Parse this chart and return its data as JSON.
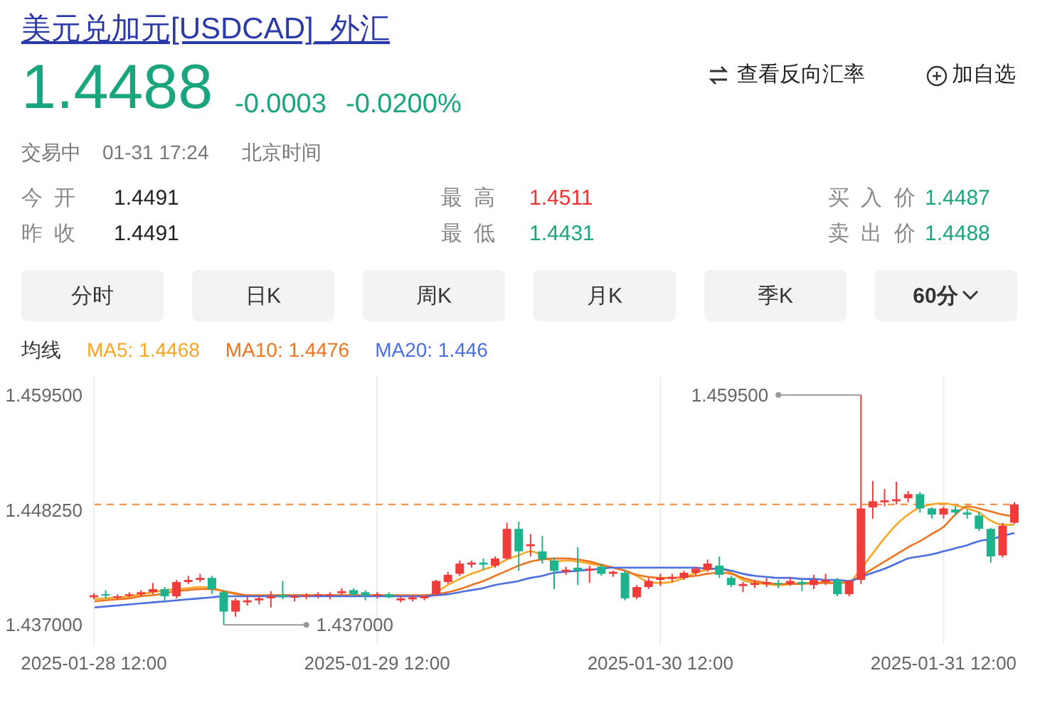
{
  "chart_data": {
    "type": "candlestick",
    "title": "美元兑加元[USDCAD]_外汇",
    "categories": [
      "2025-01-28 12:00",
      null,
      null,
      null,
      null,
      null,
      null,
      null,
      null,
      null,
      null,
      null,
      null,
      null,
      null,
      null,
      null,
      null,
      null,
      null,
      null,
      null,
      null,
      null,
      "2025-01-29 12:00",
      null,
      null,
      null,
      null,
      null,
      null,
      null,
      null,
      null,
      null,
      null,
      null,
      null,
      null,
      null,
      null,
      null,
      null,
      null,
      null,
      null,
      null,
      null,
      "2025-01-30 12:00",
      null,
      null,
      null,
      null,
      null,
      null,
      null,
      null,
      null,
      null,
      null,
      null,
      null,
      null,
      null,
      null,
      null,
      null,
      null,
      null,
      null,
      null,
      null,
      "2025-01-31 12:00",
      null,
      null,
      null,
      null,
      null,
      null
    ],
    "ohlc": [
      [
        1.4397,
        1.4401,
        1.4395,
        1.4399
      ],
      [
        1.44,
        1.4404,
        1.4396,
        1.4399
      ],
      [
        1.4397,
        1.44,
        1.4395,
        1.4398
      ],
      [
        1.4399,
        1.4402,
        1.4397,
        1.44
      ],
      [
        1.44,
        1.4404,
        1.4398,
        1.4402
      ],
      [
        1.4402,
        1.4411,
        1.44,
        1.4405
      ],
      [
        1.4405,
        1.4407,
        1.4393,
        1.4398
      ],
      [
        1.4398,
        1.4414,
        1.4396,
        1.4412
      ],
      [
        1.4412,
        1.4418,
        1.441,
        1.4414
      ],
      [
        1.4414,
        1.442,
        1.4412,
        1.4416
      ],
      [
        1.4416,
        1.4418,
        1.44,
        1.4405
      ],
      [
        1.4402,
        1.4404,
        1.437,
        1.4383
      ],
      [
        1.4383,
        1.4396,
        1.4378,
        1.4394
      ],
      [
        1.4392,
        1.4398,
        1.4389,
        1.4394
      ],
      [
        1.4394,
        1.4399,
        1.439,
        1.4396
      ],
      [
        1.4396,
        1.4403,
        1.4387,
        1.4398
      ],
      [
        1.4399,
        1.4413,
        1.4395,
        1.4397
      ],
      [
        1.4397,
        1.44,
        1.4393,
        1.4398
      ],
      [
        1.4398,
        1.4401,
        1.4395,
        1.4399
      ],
      [
        1.4399,
        1.4402,
        1.4396,
        1.44
      ],
      [
        1.4399,
        1.4402,
        1.4395,
        1.44
      ],
      [
        1.4401,
        1.4406,
        1.4399,
        1.4403
      ],
      [
        1.4404,
        1.4406,
        1.4398,
        1.44
      ],
      [
        1.4402,
        1.4404,
        1.4394,
        1.4399
      ],
      [
        1.4399,
        1.4402,
        1.4396,
        1.44
      ],
      [
        1.44,
        1.4402,
        1.4396,
        1.4397
      ],
      [
        1.4394,
        1.4398,
        1.4392,
        1.4396
      ],
      [
        1.4395,
        1.4399,
        1.4393,
        1.4397
      ],
      [
        1.4396,
        1.4399,
        1.4394,
        1.4398
      ],
      [
        1.44,
        1.4414,
        1.4398,
        1.4413
      ],
      [
        1.4412,
        1.4422,
        1.441,
        1.4419
      ],
      [
        1.442,
        1.4433,
        1.4418,
        1.443
      ],
      [
        1.4429,
        1.4433,
        1.4426,
        1.4431
      ],
      [
        1.4431,
        1.4435,
        1.4424,
        1.4429
      ],
      [
        1.4428,
        1.4437,
        1.4426,
        1.4435
      ],
      [
        1.4435,
        1.447,
        1.4434,
        1.4464
      ],
      [
        1.4464,
        1.4471,
        1.4423,
        1.4442
      ],
      [
        1.4447,
        1.4459,
        1.4437,
        1.4449
      ],
      [
        1.4442,
        1.4457,
        1.443,
        1.4434
      ],
      [
        1.4433,
        1.4436,
        1.4405,
        1.4423
      ],
      [
        1.4422,
        1.4427,
        1.4419,
        1.4424
      ],
      [
        1.4426,
        1.4446,
        1.4409,
        1.4423
      ],
      [
        1.4423,
        1.4428,
        1.4411,
        1.4425
      ],
      [
        1.4427,
        1.443,
        1.4418,
        1.442
      ],
      [
        1.442,
        1.4423,
        1.4417,
        1.4422
      ],
      [
        1.4421,
        1.4423,
        1.4394,
        1.4396
      ],
      [
        1.4397,
        1.4409,
        1.4395,
        1.4407
      ],
      [
        1.4407,
        1.4416,
        1.4405,
        1.4413
      ],
      [
        1.4414,
        1.442,
        1.4408,
        1.4416
      ],
      [
        1.4415,
        1.442,
        1.4412,
        1.4417
      ],
      [
        1.4416,
        1.4423,
        1.4414,
        1.4421
      ],
      [
        1.4421,
        1.4427,
        1.4419,
        1.4425
      ],
      [
        1.4424,
        1.4434,
        1.4422,
        1.443
      ],
      [
        1.4428,
        1.4437,
        1.4416,
        1.4419
      ],
      [
        1.4416,
        1.4418,
        1.4407,
        1.4409
      ],
      [
        1.4408,
        1.4412,
        1.4402,
        1.441
      ],
      [
        1.4409,
        1.4414,
        1.4406,
        1.4411
      ],
      [
        1.441,
        1.4416,
        1.4407,
        1.4412
      ],
      [
        1.4411,
        1.4414,
        1.4406,
        1.441
      ],
      [
        1.441,
        1.4417,
        1.4408,
        1.4413
      ],
      [
        1.4412,
        1.4415,
        1.4403,
        1.441
      ],
      [
        1.4409,
        1.4419,
        1.4405,
        1.4414
      ],
      [
        1.4412,
        1.442,
        1.4409,
        1.4414
      ],
      [
        1.4414,
        1.4416,
        1.4398,
        1.44
      ],
      [
        1.44,
        1.4414,
        1.4398,
        1.4413
      ],
      [
        1.4414,
        1.4595,
        1.441,
        1.4484
      ],
      [
        1.4485,
        1.4511,
        1.4474,
        1.4491
      ],
      [
        1.449,
        1.4503,
        1.4486,
        1.4492
      ],
      [
        1.4491,
        1.451,
        1.4488,
        1.4493
      ],
      [
        1.4494,
        1.4501,
        1.449,
        1.4498
      ],
      [
        1.4498,
        1.45,
        1.448,
        1.4484
      ],
      [
        1.4484,
        1.4485,
        1.4474,
        1.4478
      ],
      [
        1.4478,
        1.4486,
        1.4474,
        1.4484
      ],
      [
        1.4483,
        1.4486,
        1.4477,
        1.448
      ],
      [
        1.448,
        1.4483,
        1.4474,
        1.4478
      ],
      [
        1.4477,
        1.4481,
        1.4462,
        1.4464
      ],
      [
        1.4464,
        1.4465,
        1.4431,
        1.4437
      ],
      [
        1.4438,
        1.447,
        1.4436,
        1.4467
      ],
      [
        1.447,
        1.449,
        1.4469,
        1.4488
      ]
    ],
    "colors": [
      "#f23b3b",
      "#1db38c",
      "#f23b3b",
      "#f23b3b",
      "#f23b3b",
      "#f23b3b",
      "#1db38c",
      "#f23b3b",
      "#f23b3b",
      "#f23b3b",
      "#1db38c",
      "#1db38c",
      "#f23b3b",
      "#f23b3b",
      "#f23b3b",
      "#f23b3b",
      "#1db38c",
      "#f23b3b",
      "#f23b3b",
      "#f23b3b",
      "#f23b3b",
      "#f23b3b",
      "#1db38c",
      "#1db38c",
      "#f23b3b",
      "#1db38c",
      "#f23b3b",
      "#f23b3b",
      "#f23b3b",
      "#f23b3b",
      "#f23b3b",
      "#f23b3b",
      "#f23b3b",
      "#1db38c",
      "#f23b3b",
      "#f23b3b",
      "#1db38c",
      "#f23b3b",
      "#1db38c",
      "#1db38c",
      "#f23b3b",
      "#1db38c",
      "#f23b3b",
      "#1db38c",
      "#f23b3b",
      "#1db38c",
      "#f23b3b",
      "#f23b3b",
      "#f23b3b",
      "#f23b3b",
      "#f23b3b",
      "#f23b3b",
      "#f23b3b",
      "#1db38c",
      "#1db38c",
      "#f23b3b",
      "#f23b3b",
      "#f23b3b",
      "#1db38c",
      "#f23b3b",
      "#1db38c",
      "#f23b3b",
      "#f23b3b",
      "#1db38c",
      "#f23b3b",
      "#f23b3b",
      "#f23b3b",
      "#f23b3b",
      "#f23b3b",
      "#f23b3b",
      "#1db38c",
      "#1db38c",
      "#f23b3b",
      "#1db38c",
      "#1db38c",
      "#1db38c",
      "#1db38c",
      "#f23b3b",
      "#f23b3b"
    ],
    "series": [
      {
        "type": "line",
        "name": "MA5: 1.4468",
        "color": "#f5a623",
        "values": [
          1.4395,
          1.4396,
          1.4397,
          1.4398,
          1.44,
          1.4402,
          1.4404,
          1.4405,
          1.4406,
          1.4407,
          1.4406,
          1.4403,
          1.44,
          1.4399,
          1.4398,
          1.4399,
          1.4399,
          1.4399,
          1.4399,
          1.4399,
          1.4399,
          1.4399,
          1.4399,
          1.4399,
          1.4399,
          1.4399,
          1.4398,
          1.4398,
          1.4398,
          1.4402,
          1.4409,
          1.4415,
          1.442,
          1.4424,
          1.4428,
          1.4434,
          1.4438,
          1.4442,
          1.4438,
          1.4432,
          1.4433,
          1.4432,
          1.443,
          1.4428,
          1.4426,
          1.4423,
          1.4418,
          1.4412,
          1.4411,
          1.4412,
          1.4416,
          1.4421,
          1.4424,
          1.4425,
          1.4421,
          1.4414,
          1.4411,
          1.441,
          1.4409,
          1.441,
          1.4411,
          1.4411,
          1.4412,
          1.4411,
          1.4412,
          1.4425,
          1.444,
          1.4455,
          1.4468,
          1.4478,
          1.4485,
          1.4488,
          1.4489,
          1.4487,
          1.4484,
          1.448,
          1.4472,
          1.4468,
          1.4468
        ]
      },
      {
        "type": "line",
        "name": "MA10: 1.4476",
        "color": "#f0741f",
        "values": [
          1.4393,
          1.4394,
          1.4395,
          1.4396,
          1.4398,
          1.4399,
          1.4401,
          1.4403,
          1.4404,
          1.4405,
          1.4405,
          1.4403,
          1.4401,
          1.4399,
          1.4399,
          1.4399,
          1.4399,
          1.4399,
          1.4399,
          1.4399,
          1.4399,
          1.4399,
          1.4399,
          1.4399,
          1.4399,
          1.4399,
          1.4399,
          1.4399,
          1.4399,
          1.44,
          1.4402,
          1.4405,
          1.4409,
          1.4413,
          1.4418,
          1.4423,
          1.4428,
          1.4432,
          1.4434,
          1.4435,
          1.4435,
          1.4434,
          1.4432,
          1.4429,
          1.4426,
          1.4423,
          1.4419,
          1.4417,
          1.4416,
          1.4416,
          1.4417,
          1.4418,
          1.442,
          1.4421,
          1.442,
          1.4416,
          1.4413,
          1.4411,
          1.441,
          1.441,
          1.441,
          1.4411,
          1.4411,
          1.4411,
          1.4412,
          1.4418,
          1.4425,
          1.4432,
          1.4439,
          1.4446,
          1.4452,
          1.4459,
          1.4466,
          1.4478,
          1.4486,
          1.4484,
          1.4481,
          1.4478,
          1.4476
        ]
      },
      {
        "type": "line",
        "name": "MA20: 1.446",
        "color": "#4b6fe0",
        "values": [
          1.4387,
          1.4388,
          1.4389,
          1.439,
          1.4391,
          1.4392,
          1.4393,
          1.4394,
          1.4395,
          1.4396,
          1.4397,
          1.4398,
          1.4398,
          1.4398,
          1.4398,
          1.4398,
          1.4398,
          1.4398,
          1.4398,
          1.4398,
          1.4398,
          1.4398,
          1.4398,
          1.4398,
          1.4398,
          1.4398,
          1.4398,
          1.4398,
          1.4398,
          1.4399,
          1.44,
          1.4402,
          1.4404,
          1.4406,
          1.4409,
          1.4411,
          1.4413,
          1.4416,
          1.4418,
          1.4421,
          1.4422,
          1.4423,
          1.4424,
          1.4425,
          1.4426,
          1.4426,
          1.4426,
          1.4426,
          1.4426,
          1.4426,
          1.4426,
          1.4426,
          1.4425,
          1.4425,
          1.4423,
          1.442,
          1.4418,
          1.4417,
          1.4416,
          1.4416,
          1.4415,
          1.4415,
          1.4414,
          1.4414,
          1.4413,
          1.4417,
          1.4421,
          1.4425,
          1.443,
          1.4435,
          1.4437,
          1.4439,
          1.4442,
          1.4445,
          1.4448,
          1.4452,
          1.4454,
          1.4457,
          1.446
        ]
      }
    ],
    "legend_title": "均线",
    "legend": "top left",
    "marker": "none",
    "grid": "x",
    "ylim": [
      1.435,
      1.4613
    ],
    "yticks": [
      {
        "value": 1.437,
        "label": "1.437000"
      },
      {
        "value": 1.44825,
        "label": "1.448250"
      },
      {
        "value": 1.4595,
        "label": "1.459500"
      }
    ],
    "ref_lines": [
      {
        "axis": "y",
        "value": 1.4488,
        "color": "#f7893b",
        "line_style": "dashed"
      }
    ],
    "annotations": [
      "1.4488",
      "-0.0003",
      "-0.0200%",
      "查看反向汇率",
      "加自选",
      "交易中",
      "01-31 17:24",
      "北京时间",
      "今 开",
      "1.4491",
      "昨 收",
      "1.4491",
      "最 高",
      "1.4511",
      "最 低",
      "1.4431",
      "买 入 价",
      "1.4487",
      "卖 出 价",
      "1.4488",
      "分时",
      "日K",
      "周K",
      "月K",
      "季K",
      "60分",
      "1.459500",
      "1.437000"
    ]
  }
}
